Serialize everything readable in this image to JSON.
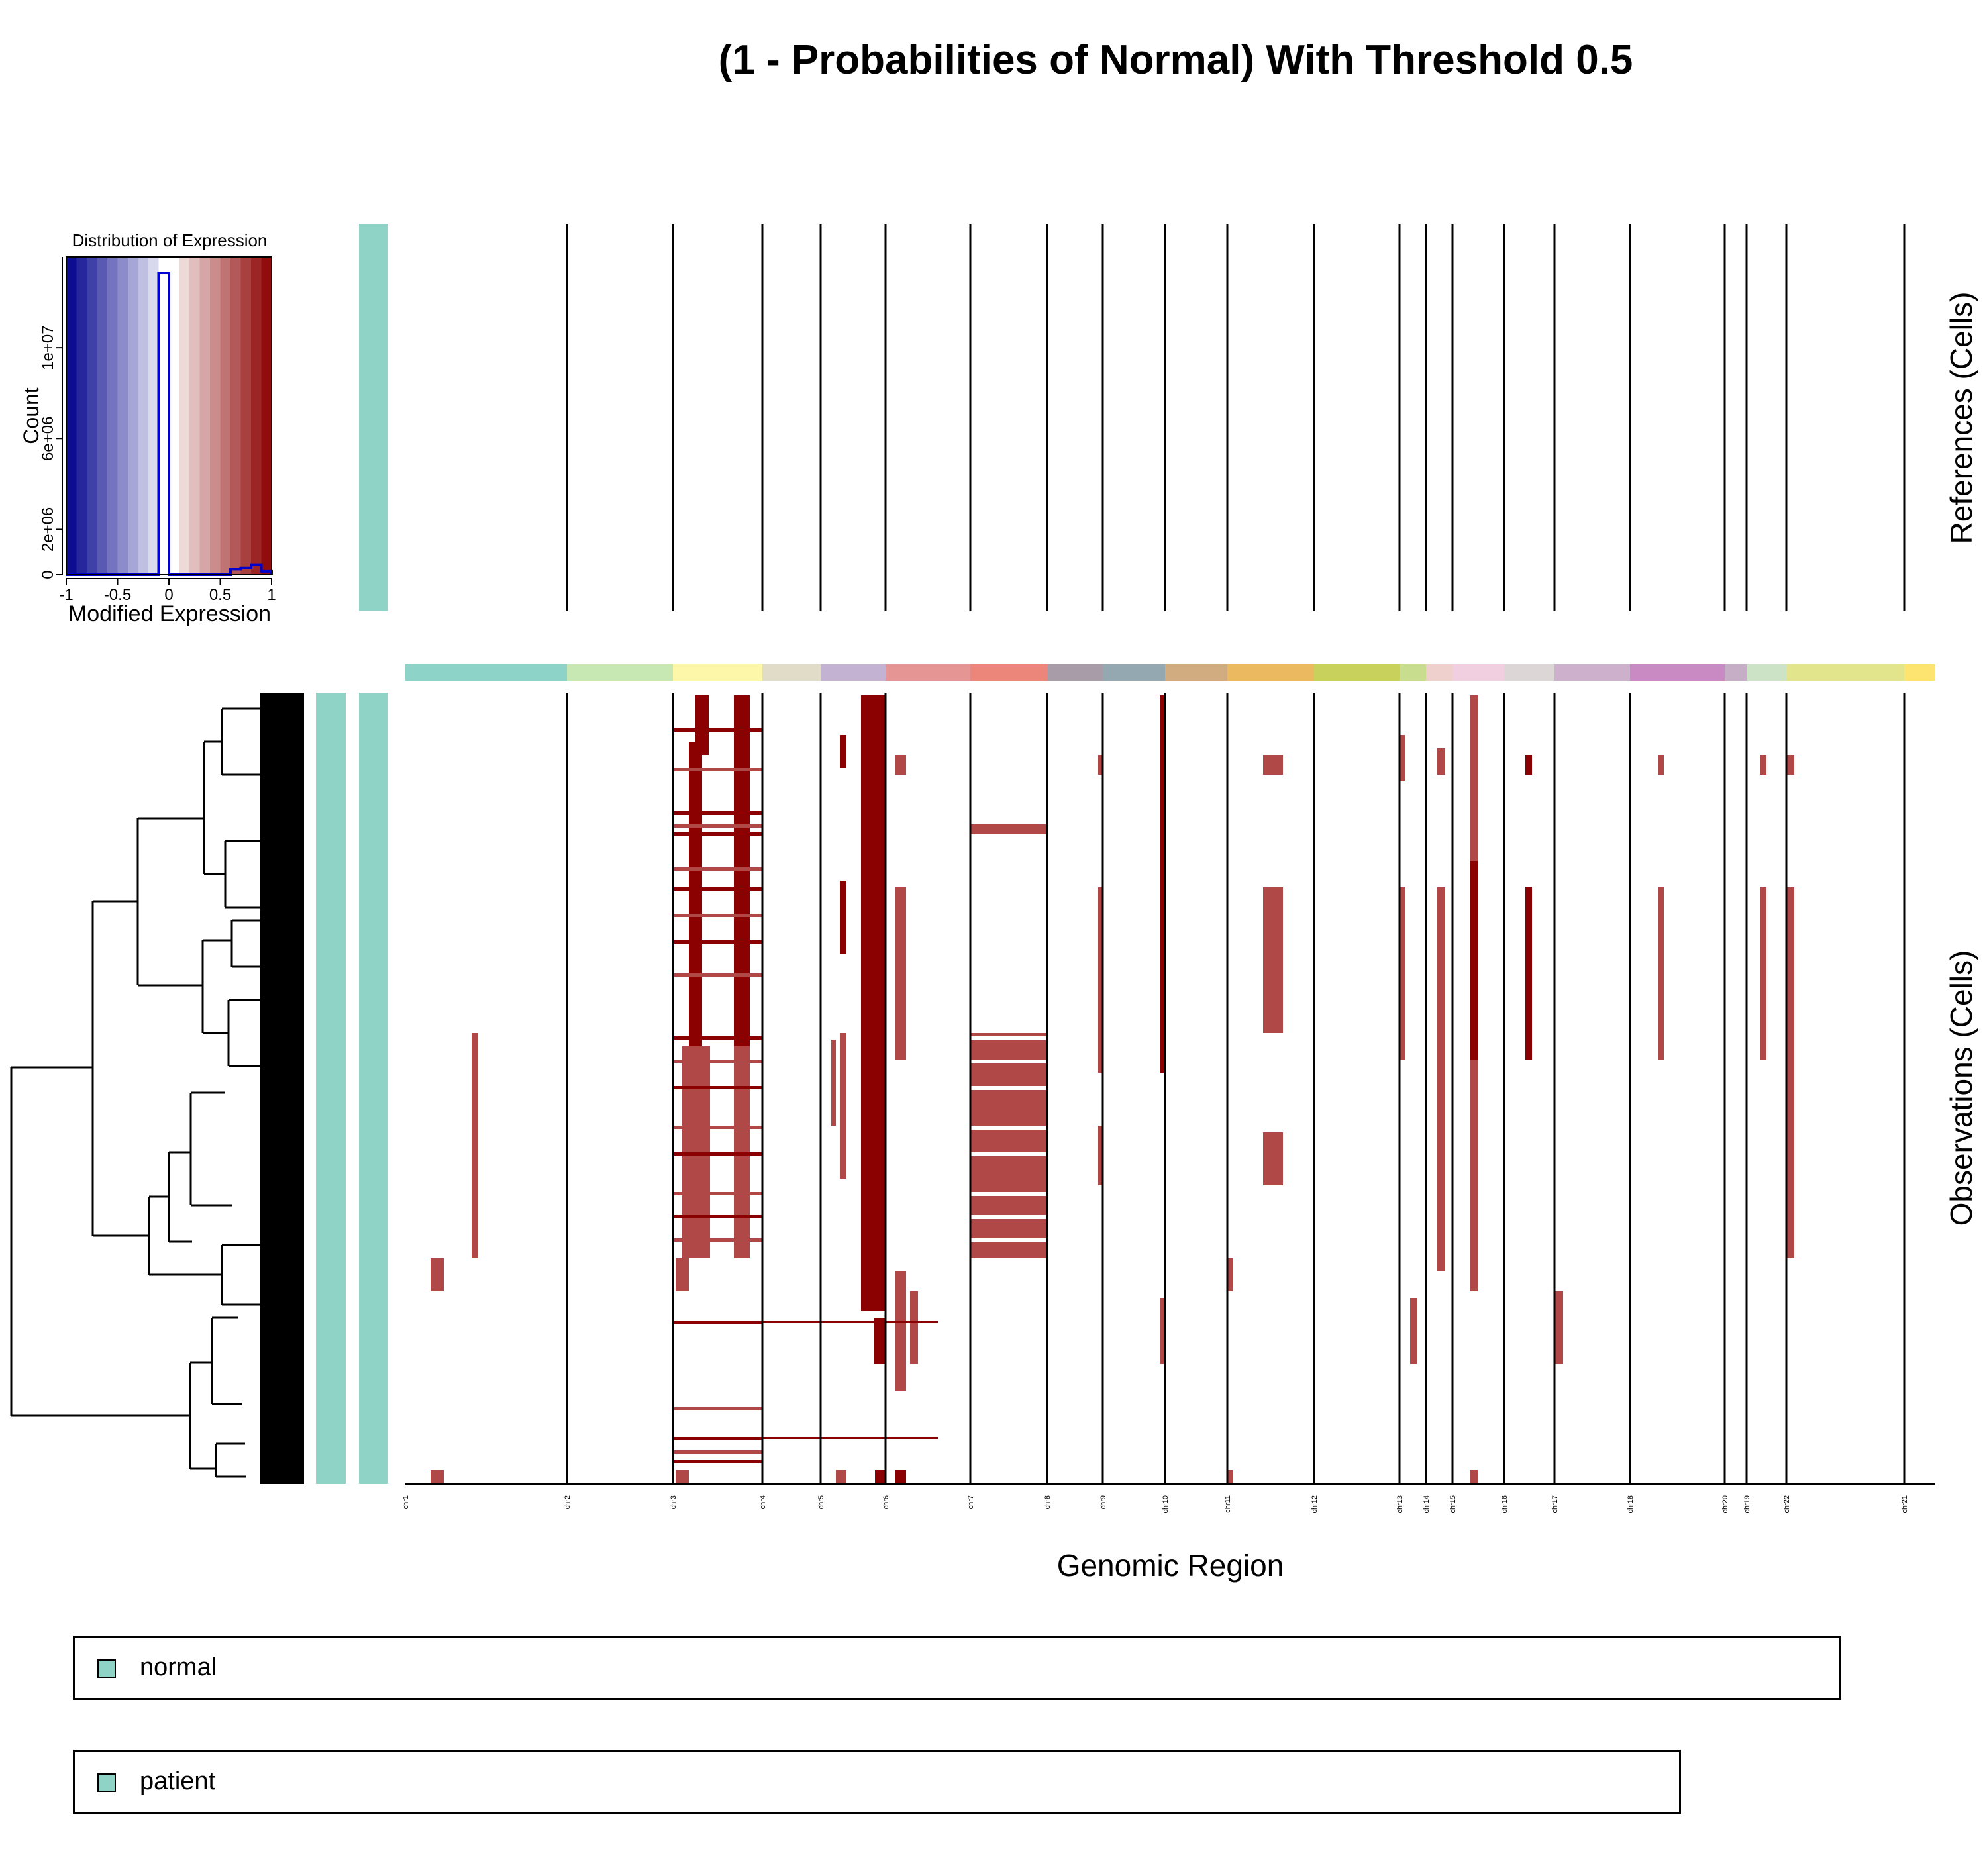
{
  "title": "(1 - Probabilities of Normal) With Threshold 0.5",
  "inset": {
    "title": "Distribution of Expression",
    "xlabel": "Modified Expression",
    "ylabel": "Count",
    "xticks": [
      "-1",
      "-0.5",
      "0",
      "0.5",
      "1"
    ],
    "yticks": [
      "0",
      "2e+06",
      "6e+06",
      "1e+07"
    ]
  },
  "labels": {
    "references": "References (Cells)",
    "observations": "Observations (Cells)",
    "xlabel": "Genomic Region"
  },
  "legend": [
    {
      "label": "normal",
      "color": "#8fd3c7"
    },
    {
      "label": "patient",
      "color": "#8fd3c7"
    }
  ],
  "colors": {
    "annotation": "#8fd3c7",
    "gain_dark": "#8b0000",
    "gain_light": "#b04848",
    "histogram_line": "#0000cc"
  },
  "chart_data": [
    {
      "type": "heatmap",
      "title": "(1 - Probabilities of Normal) With Threshold 0.5",
      "xlabel": "Genomic Region",
      "ylabel": "Observations (Cells)",
      "color_scale": [
        -1,
        1
      ],
      "groups": [
        "References (Cells)",
        "Observations (Cells)"
      ],
      "chromosomes": [
        {
          "name": "chr1",
          "color": "#8dd3c7"
        },
        {
          "name": "chr2",
          "color": "#c7e8b3"
        },
        {
          "name": "chr3",
          "color": "#fdf8a9"
        },
        {
          "name": "chr4",
          "color": "#e0dcc8"
        },
        {
          "name": "chr5",
          "color": "#c4b2d2"
        },
        {
          "name": "chr6",
          "color": "#e69595"
        },
        {
          "name": "chr7",
          "color": "#ec867b"
        },
        {
          "name": "chr8",
          "color": "#a89ca8"
        },
        {
          "name": "chr9",
          "color": "#93a8b0"
        },
        {
          "name": "chr10",
          "color": "#d1ac80"
        },
        {
          "name": "chr11",
          "color": "#ebb95f"
        },
        {
          "name": "chr12",
          "color": "#c7d15c"
        },
        {
          "name": "chr13",
          "color": "#c8de8e"
        },
        {
          "name": "chr14",
          "color": "#efd0cd"
        },
        {
          "name": "chr15",
          "color": "#f2cfe0"
        },
        {
          "name": "chr16",
          "color": "#dcd6d6"
        },
        {
          "name": "chr17",
          "color": "#ccb0cc"
        },
        {
          "name": "chr18",
          "color": "#c989c3"
        },
        {
          "name": "chr20",
          "color": "#c7aec7"
        },
        {
          "name": "chr19",
          "color": "#cce3c6"
        },
        {
          "name": "chr22",
          "color": "#e2e58c"
        },
        {
          "name": "chr21",
          "color": "#fde36f"
        }
      ]
    },
    {
      "type": "bar",
      "title": "Distribution of Expression",
      "xlabel": "Modified Expression",
      "ylabel": "Count",
      "xlim": [
        -1,
        1
      ],
      "ylim": [
        0,
        14000000
      ],
      "x": [
        -0.95,
        -0.85,
        -0.75,
        -0.65,
        -0.55,
        -0.45,
        -0.35,
        -0.25,
        -0.15,
        -0.05,
        0.05,
        0.15,
        0.25,
        0.35,
        0.45,
        0.55,
        0.65,
        0.75,
        0.85,
        0.95
      ],
      "values": [
        0,
        0,
        0,
        0,
        0,
        0,
        0,
        0,
        0,
        13300000,
        0,
        0,
        0,
        0,
        0,
        0,
        250000,
        300000,
        450000,
        150000
      ]
    }
  ]
}
